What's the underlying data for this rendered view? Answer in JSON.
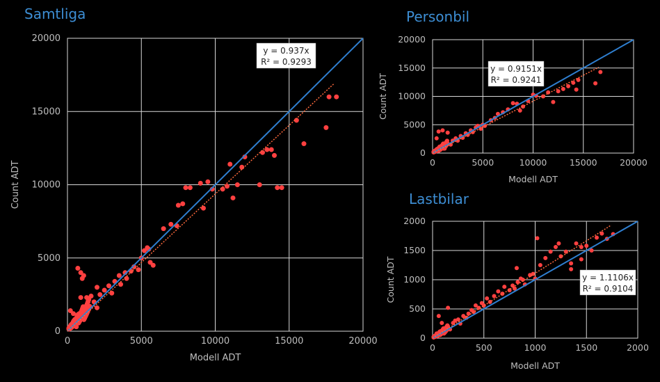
{
  "chart_data": [
    {
      "type": "scatter",
      "title": "Samtliga",
      "xlabel": "Modell ADT",
      "ylabel": "Count ADT",
      "xlim": [
        0,
        20000
      ],
      "ylim": [
        0,
        20000
      ],
      "xticks": [
        "0",
        "5000",
        "10000",
        "15000",
        "20000"
      ],
      "yticks": [
        "0",
        "5000",
        "10000",
        "15000",
        "20000"
      ],
      "grid": true,
      "equation": "y = 0.937x",
      "r2": "R² = 0.9293",
      "slope": 0.937,
      "colors": {
        "points": "#ff4040",
        "identity_line": "#2f7fd0",
        "trendline": "#ff6a3d"
      },
      "points": [
        [
          200,
          200
        ],
        [
          300,
          500
        ],
        [
          500,
          800
        ],
        [
          600,
          300
        ],
        [
          800,
          1200
        ],
        [
          1000,
          900
        ],
        [
          1200,
          1500
        ],
        [
          1500,
          1700
        ],
        [
          1800,
          2000
        ],
        [
          2000,
          1600
        ],
        [
          2200,
          2500
        ],
        [
          2500,
          2800
        ],
        [
          2800,
          3100
        ],
        [
          3000,
          2600
        ],
        [
          3200,
          3400
        ],
        [
          3500,
          3800
        ],
        [
          3600,
          3200
        ],
        [
          3900,
          4000
        ],
        [
          4000,
          3600
        ],
        [
          4300,
          4100
        ],
        [
          4500,
          4400
        ],
        [
          4800,
          4200
        ],
        [
          5000,
          5000
        ],
        [
          5200,
          5500
        ],
        [
          5500,
          5600
        ],
        [
          5600,
          4700
        ],
        [
          5800,
          4500
        ],
        [
          5400,
          5700
        ],
        [
          200,
          1400
        ],
        [
          400,
          1200
        ],
        [
          700,
          4300
        ],
        [
          900,
          4000
        ],
        [
          1000,
          3600
        ],
        [
          1100,
          3800
        ],
        [
          900,
          2300
        ],
        [
          1300,
          2300
        ],
        [
          1600,
          2400
        ],
        [
          2000,
          3000
        ],
        [
          6500,
          7000
        ],
        [
          7000,
          7300
        ],
        [
          7400,
          7200
        ],
        [
          7500,
          8600
        ],
        [
          7800,
          8700
        ],
        [
          8000,
          9800
        ],
        [
          8300,
          9800
        ],
        [
          9000,
          10100
        ],
        [
          9500,
          10200
        ],
        [
          9200,
          8400
        ],
        [
          9800,
          9700
        ],
        [
          10500,
          9700
        ],
        [
          10800,
          9900
        ],
        [
          11000,
          11400
        ],
        [
          11200,
          9100
        ],
        [
          11500,
          10000
        ],
        [
          11800,
          11200
        ],
        [
          12000,
          11900
        ],
        [
          13000,
          10000
        ],
        [
          13200,
          12200
        ],
        [
          13500,
          12400
        ],
        [
          13800,
          12400
        ],
        [
          14000,
          12000
        ],
        [
          14200,
          9800
        ],
        [
          14500,
          9800
        ],
        [
          15500,
          14400
        ],
        [
          16000,
          12800
        ],
        [
          17500,
          13900
        ],
        [
          17700,
          16000
        ],
        [
          18200,
          16000
        ]
      ]
    },
    {
      "type": "scatter",
      "title": "Personbil",
      "xlabel": "Modell ADT",
      "ylabel": "Count ADT",
      "xlim": [
        0,
        20000
      ],
      "ylim": [
        0,
        20000
      ],
      "xticks": [
        "0",
        "5000",
        "10000",
        "15000",
        "20000"
      ],
      "yticks": [
        "0",
        "5000",
        "10000",
        "15000",
        "20000"
      ],
      "grid": true,
      "equation": "y = 0.9151x",
      "r2": "R² = 0.9241",
      "slope": 0.9151,
      "colors": {
        "points": "#ff4040",
        "identity_line": "#2f7fd0",
        "trendline": "#ff6a3d"
      },
      "points": [
        [
          200,
          200
        ],
        [
          400,
          600
        ],
        [
          600,
          400
        ],
        [
          800,
          900
        ],
        [
          1000,
          1200
        ],
        [
          1200,
          800
        ],
        [
          1500,
          1700
        ],
        [
          1800,
          1500
        ],
        [
          2000,
          2200
        ],
        [
          2300,
          2600
        ],
        [
          2500,
          2200
        ],
        [
          2800,
          3000
        ],
        [
          3000,
          2700
        ],
        [
          3300,
          3500
        ],
        [
          3500,
          3200
        ],
        [
          3800,
          4000
        ],
        [
          4000,
          3700
        ],
        [
          4300,
          4500
        ],
        [
          4500,
          4800
        ],
        [
          4800,
          4300
        ],
        [
          5000,
          5000
        ],
        [
          5200,
          4800
        ],
        [
          600,
          3800
        ],
        [
          1000,
          4000
        ],
        [
          1500,
          3600
        ],
        [
          400,
          2600
        ],
        [
          5800,
          5800
        ],
        [
          6200,
          6200
        ],
        [
          6500,
          6900
        ],
        [
          7000,
          7200
        ],
        [
          7500,
          7700
        ],
        [
          8000,
          8800
        ],
        [
          8400,
          8700
        ],
        [
          8700,
          7500
        ],
        [
          9000,
          8200
        ],
        [
          9500,
          9200
        ],
        [
          10000,
          10300
        ],
        [
          10300,
          10100
        ],
        [
          11000,
          10000
        ],
        [
          11500,
          10700
        ],
        [
          12000,
          9000
        ],
        [
          12500,
          10900
        ],
        [
          13000,
          11300
        ],
        [
          13500,
          11800
        ],
        [
          14000,
          12400
        ],
        [
          14300,
          11200
        ],
        [
          14500,
          12900
        ],
        [
          16200,
          12300
        ],
        [
          16700,
          14300
        ]
      ]
    },
    {
      "type": "scatter",
      "title": "Lastbilar",
      "xlabel": "Modell ADT",
      "ylabel": "Count ADT",
      "xlim": [
        0,
        2000
      ],
      "ylim": [
        0,
        2000
      ],
      "xticks": [
        "0",
        "500",
        "1000",
        "1500",
        "2000"
      ],
      "yticks": [
        "0",
        "500",
        "1000",
        "1500",
        "2000"
      ],
      "grid": true,
      "equation": "y = 1.1106x",
      "r2": "R² = 0.9104",
      "slope": 1.1106,
      "colors": {
        "points": "#ff4040",
        "identity_line": "#2f7fd0",
        "trendline": "#ff6a3d"
      },
      "points": [
        [
          20,
          30
        ],
        [
          40,
          80
        ],
        [
          60,
          50
        ],
        [
          80,
          120
        ],
        [
          100,
          90
        ],
        [
          120,
          160
        ],
        [
          150,
          200
        ],
        [
          170,
          150
        ],
        [
          200,
          260
        ],
        [
          220,
          300
        ],
        [
          250,
          320
        ],
        [
          270,
          250
        ],
        [
          300,
          380
        ],
        [
          330,
          350
        ],
        [
          350,
          420
        ],
        [
          380,
          480
        ],
        [
          400,
          450
        ],
        [
          420,
          560
        ],
        [
          450,
          520
        ],
        [
          480,
          600
        ],
        [
          500,
          560
        ],
        [
          530,
          680
        ],
        [
          560,
          620
        ],
        [
          600,
          720
        ],
        [
          640,
          800
        ],
        [
          680,
          760
        ],
        [
          700,
          880
        ],
        [
          750,
          820
        ],
        [
          780,
          900
        ],
        [
          800,
          850
        ],
        [
          830,
          960
        ],
        [
          860,
          1020
        ],
        [
          880,
          1000
        ],
        [
          900,
          920
        ],
        [
          950,
          1080
        ],
        [
          980,
          1100
        ],
        [
          1000,
          1020
        ],
        [
          1020,
          1710
        ],
        [
          1050,
          1250
        ],
        [
          1100,
          1370
        ],
        [
          1150,
          1480
        ],
        [
          1200,
          1560
        ],
        [
          1230,
          1620
        ],
        [
          1250,
          1400
        ],
        [
          1300,
          1480
        ],
        [
          1350,
          1280
        ],
        [
          1400,
          1620
        ],
        [
          1450,
          1560
        ],
        [
          1500,
          1580
        ],
        [
          1550,
          1500
        ],
        [
          1600,
          1720
        ],
        [
          1650,
          1790
        ],
        [
          1700,
          1700
        ],
        [
          1760,
          1780
        ],
        [
          60,
          380
        ],
        [
          150,
          520
        ],
        [
          90,
          260
        ],
        [
          820,
          1200
        ],
        [
          1350,
          1180
        ],
        [
          1450,
          1350
        ]
      ]
    }
  ]
}
